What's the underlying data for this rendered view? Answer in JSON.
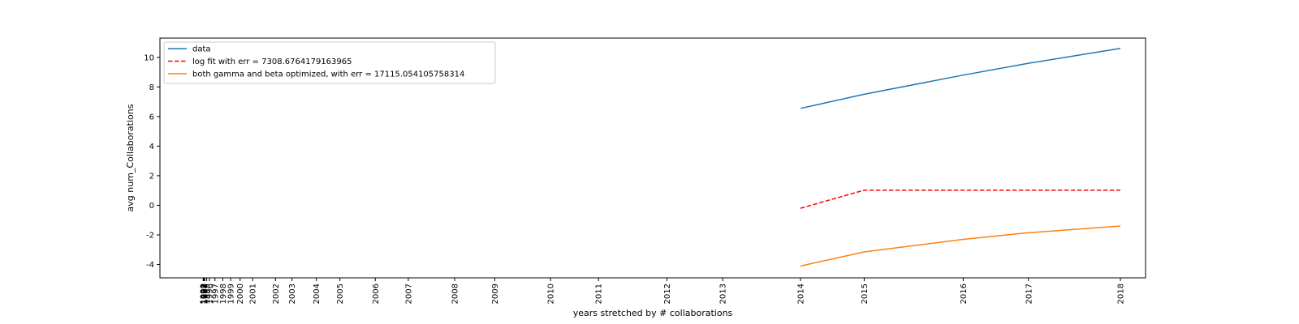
{
  "chart_data": {
    "type": "line",
    "xlabel": "years stretched by # collaborations",
    "ylabel": "avg num_Collaborations",
    "ylim": [
      -4.9,
      11.3
    ],
    "yticks": [
      -4,
      -2,
      0,
      2,
      4,
      6,
      8,
      10
    ],
    "grid": false,
    "legend_position": "top-left",
    "x_ticks": [
      {
        "label": "1990",
        "value": 1.0
      },
      {
        "label": "1991",
        "value": 1.5
      },
      {
        "label": "1992",
        "value": 2.0
      },
      {
        "label": "1993",
        "value": 2.5
      },
      {
        "label": "1994",
        "value": 3.0
      },
      {
        "label": "1995",
        "value": 5.5
      },
      {
        "label": "1996",
        "value": 9.0
      },
      {
        "label": "1997",
        "value": 16.0
      },
      {
        "label": "1998",
        "value": 26.0
      },
      {
        "label": "1999",
        "value": 36.0
      },
      {
        "label": "2000",
        "value": 48.0
      },
      {
        "label": "2001",
        "value": 64.0
      },
      {
        "label": "2002",
        "value": 93.0
      },
      {
        "label": "2003",
        "value": 114.0
      },
      {
        "label": "2004",
        "value": 145.0
      },
      {
        "label": "2005",
        "value": 175.0
      },
      {
        "label": "2006",
        "value": 220.0
      },
      {
        "label": "2007",
        "value": 262.0
      },
      {
        "label": "2008",
        "value": 321.0
      },
      {
        "label": "2009",
        "value": 372.0
      },
      {
        "label": "2010",
        "value": 443.0
      },
      {
        "label": "2011",
        "value": 504.0
      },
      {
        "label": "2012",
        "value": 591.0
      },
      {
        "label": "2013",
        "value": 662.0
      },
      {
        "label": "2014",
        "value": 761.0
      },
      {
        "label": "2015",
        "value": 842.0
      },
      {
        "label": "2016",
        "value": 968.0
      },
      {
        "label": "2017",
        "value": 1051.0
      },
      {
        "label": "2018",
        "value": 1168.0
      }
    ],
    "series": [
      {
        "name": "data",
        "color": "#1f77b4",
        "dash": "solid",
        "x": [
          761,
          842,
          968,
          1051,
          1168
        ],
        "y": [
          6.55,
          7.5,
          8.8,
          9.6,
          10.6
        ]
      },
      {
        "name": "log fit with err = 7308.6764179163965",
        "color": "#ff0000",
        "dash": "dashed",
        "x": [
          761,
          842,
          968,
          1051,
          1168
        ],
        "y": [
          -0.2,
          1.02,
          1.02,
          1.02,
          1.02
        ]
      },
      {
        "name": "both gamma and beta optimized, with err = 17115.054105758314",
        "color": "#ff7f0e",
        "dash": "solid",
        "x": [
          761,
          842,
          968,
          1051,
          1168
        ],
        "y": [
          -4.1,
          -3.15,
          -2.3,
          -1.85,
          -1.4
        ]
      }
    ]
  }
}
